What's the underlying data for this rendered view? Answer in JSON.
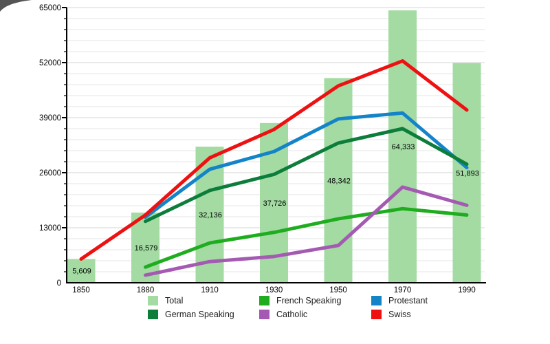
{
  "chart_data": {
    "type": "bar+line",
    "title": "",
    "xlabel": "",
    "ylabel": "",
    "grid": "on",
    "legend_position": "bottom",
    "categories": [
      "1850",
      "1880",
      "1910",
      "1930",
      "1950",
      "1970",
      "1990"
    ],
    "y_axis": {
      "min": 0,
      "max": 65000,
      "major_step": 13000,
      "minor_step": 2600,
      "tick_labels": [
        "0",
        "13000",
        "26000",
        "39000",
        "52000",
        "65000"
      ]
    },
    "bars": {
      "name": "Total",
      "color": "#a3dba3",
      "values": [
        5609,
        16579,
        32136,
        37726,
        48342,
        64333,
        51893
      ],
      "value_labels": [
        "5,609",
        "16,579",
        "32,136",
        "37,726",
        "48,342",
        "64,333",
        "51,893"
      ]
    },
    "series": [
      {
        "name": "French Speaking",
        "color": "#1fad1f",
        "values": [
          null,
          3700,
          9400,
          11900,
          15100,
          17500,
          16000
        ]
      },
      {
        "name": "Catholic",
        "color": "#a45ab2",
        "values": [
          null,
          1800,
          5000,
          6200,
          8800,
          22600,
          18300
        ]
      },
      {
        "name": "Protestant",
        "color": "#1484c9",
        "values": [
          null,
          15500,
          26800,
          31000,
          38700,
          40100,
          27200
        ]
      },
      {
        "name": "German Speaking",
        "color": "#0c7d3b",
        "values": [
          null,
          14500,
          21800,
          25600,
          33000,
          36400,
          28000
        ]
      },
      {
        "name": "Swiss",
        "color": "#ee1111",
        "values": [
          5609,
          16000,
          29500,
          36200,
          46500,
          52400,
          40800
        ]
      }
    ],
    "legend": [
      {
        "label": "Total",
        "color": "#a3dba3"
      },
      {
        "label": "French Speaking",
        "color": "#1fad1f"
      },
      {
        "label": "Protestant",
        "color": "#1484c9"
      },
      {
        "label": "German Speaking",
        "color": "#0c7d3b"
      },
      {
        "label": "Catholic",
        "color": "#a45ab2"
      },
      {
        "label": "Swiss",
        "color": "#ee1111"
      }
    ]
  }
}
